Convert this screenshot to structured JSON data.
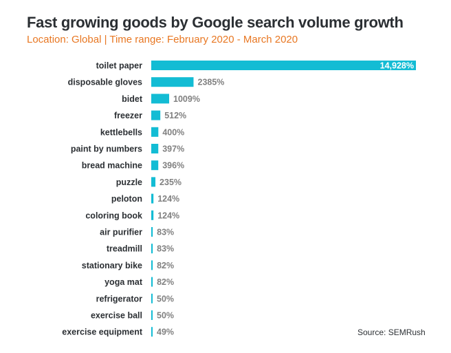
{
  "chart_data": {
    "type": "bar",
    "orientation": "horizontal",
    "title": "Fast growing goods by Google search volume growth",
    "subtitle": "Location: Global | Time range: February 2020 - March 2020",
    "categories": [
      "toilet paper",
      "disposable gloves",
      "bidet",
      "freezer",
      "kettlebells",
      "paint by numbers",
      "bread machine",
      "puzzle",
      "peloton",
      "coloring book",
      "air purifier",
      "treadmill",
      "stationary bike",
      "yoga mat",
      "refrigerator",
      "exercise ball",
      "exercise equipment"
    ],
    "values": [
      14928,
      2385,
      1009,
      512,
      400,
      397,
      396,
      235,
      124,
      124,
      83,
      83,
      82,
      82,
      50,
      50,
      49
    ],
    "value_labels": [
      "14,928%",
      "2385%",
      "1009%",
      "512%",
      "400%",
      "397%",
      "396%",
      "235%",
      "124%",
      "124%",
      "83%",
      "83%",
      "82%",
      "82%",
      "50%",
      "50%",
      "49%"
    ],
    "unit": "%",
    "bar_color": "#13bcd4",
    "grid": false,
    "legend": "none"
  },
  "source": "Source: SEMRush",
  "colors": {
    "title": "#2b2f33",
    "subtitle": "#e87722",
    "value_label": "#808080"
  }
}
